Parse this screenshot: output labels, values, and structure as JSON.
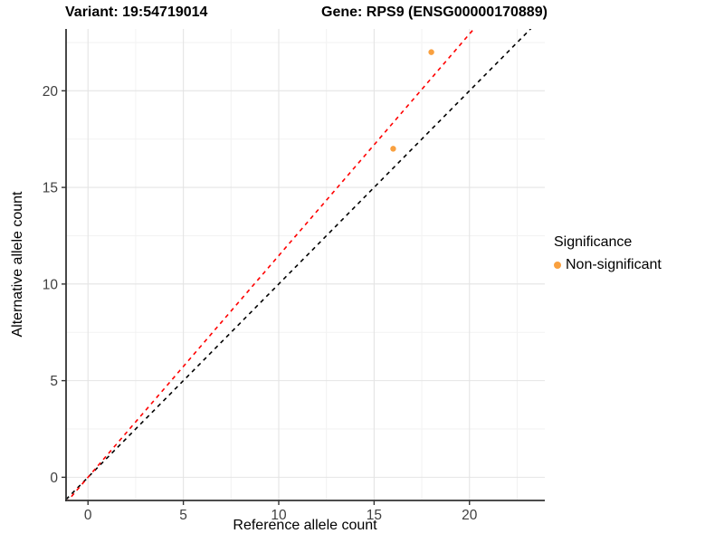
{
  "title": {
    "variant": "Variant: 19:54719014",
    "gene": "Gene: RPS9 (ENSG00000170889)"
  },
  "legend": {
    "title": "Significance",
    "items": [
      {
        "label": "Non-significant",
        "color": "#F9A03F"
      }
    ]
  },
  "chart_data": {
    "type": "scatter",
    "title": "Variant: 19:54719014   Gene: RPS9 (ENSG00000170889)",
    "xlabel": "Reference allele count",
    "ylabel": "Alternative allele count",
    "xlim": [
      -1.15,
      23.95
    ],
    "ylim": [
      -1.2,
      23.2
    ],
    "x_ticks": [
      0,
      5,
      10,
      15,
      20
    ],
    "y_ticks": [
      0,
      5,
      10,
      15,
      20
    ],
    "x_minor_ticks": [
      2.5,
      7.5,
      12.5,
      17.5,
      22.5
    ],
    "y_minor_ticks": [
      2.5,
      7.5,
      12.5,
      17.5,
      22.5
    ],
    "grid": true,
    "legend_position": "right",
    "series": [
      {
        "name": "Non-significant",
        "color": "#F9A03F",
        "point_radius": 3.2,
        "points": [
          {
            "x": 16,
            "y": 17
          },
          {
            "x": 18,
            "y": 22
          }
        ]
      }
    ],
    "lines": [
      {
        "name": "identity-line",
        "slope": 1.0,
        "intercept": 0,
        "color": "#000000",
        "style": "dashed"
      },
      {
        "name": "allelic-ratio-line",
        "slope": 1.147,
        "intercept": 0,
        "color": "#FF0000",
        "style": "dashed"
      }
    ],
    "colors": {
      "grid_major": "#E4E4E4",
      "grid_minor": "#F2F2F2",
      "axis_line": "#333333",
      "tick_label": "#404040"
    }
  }
}
